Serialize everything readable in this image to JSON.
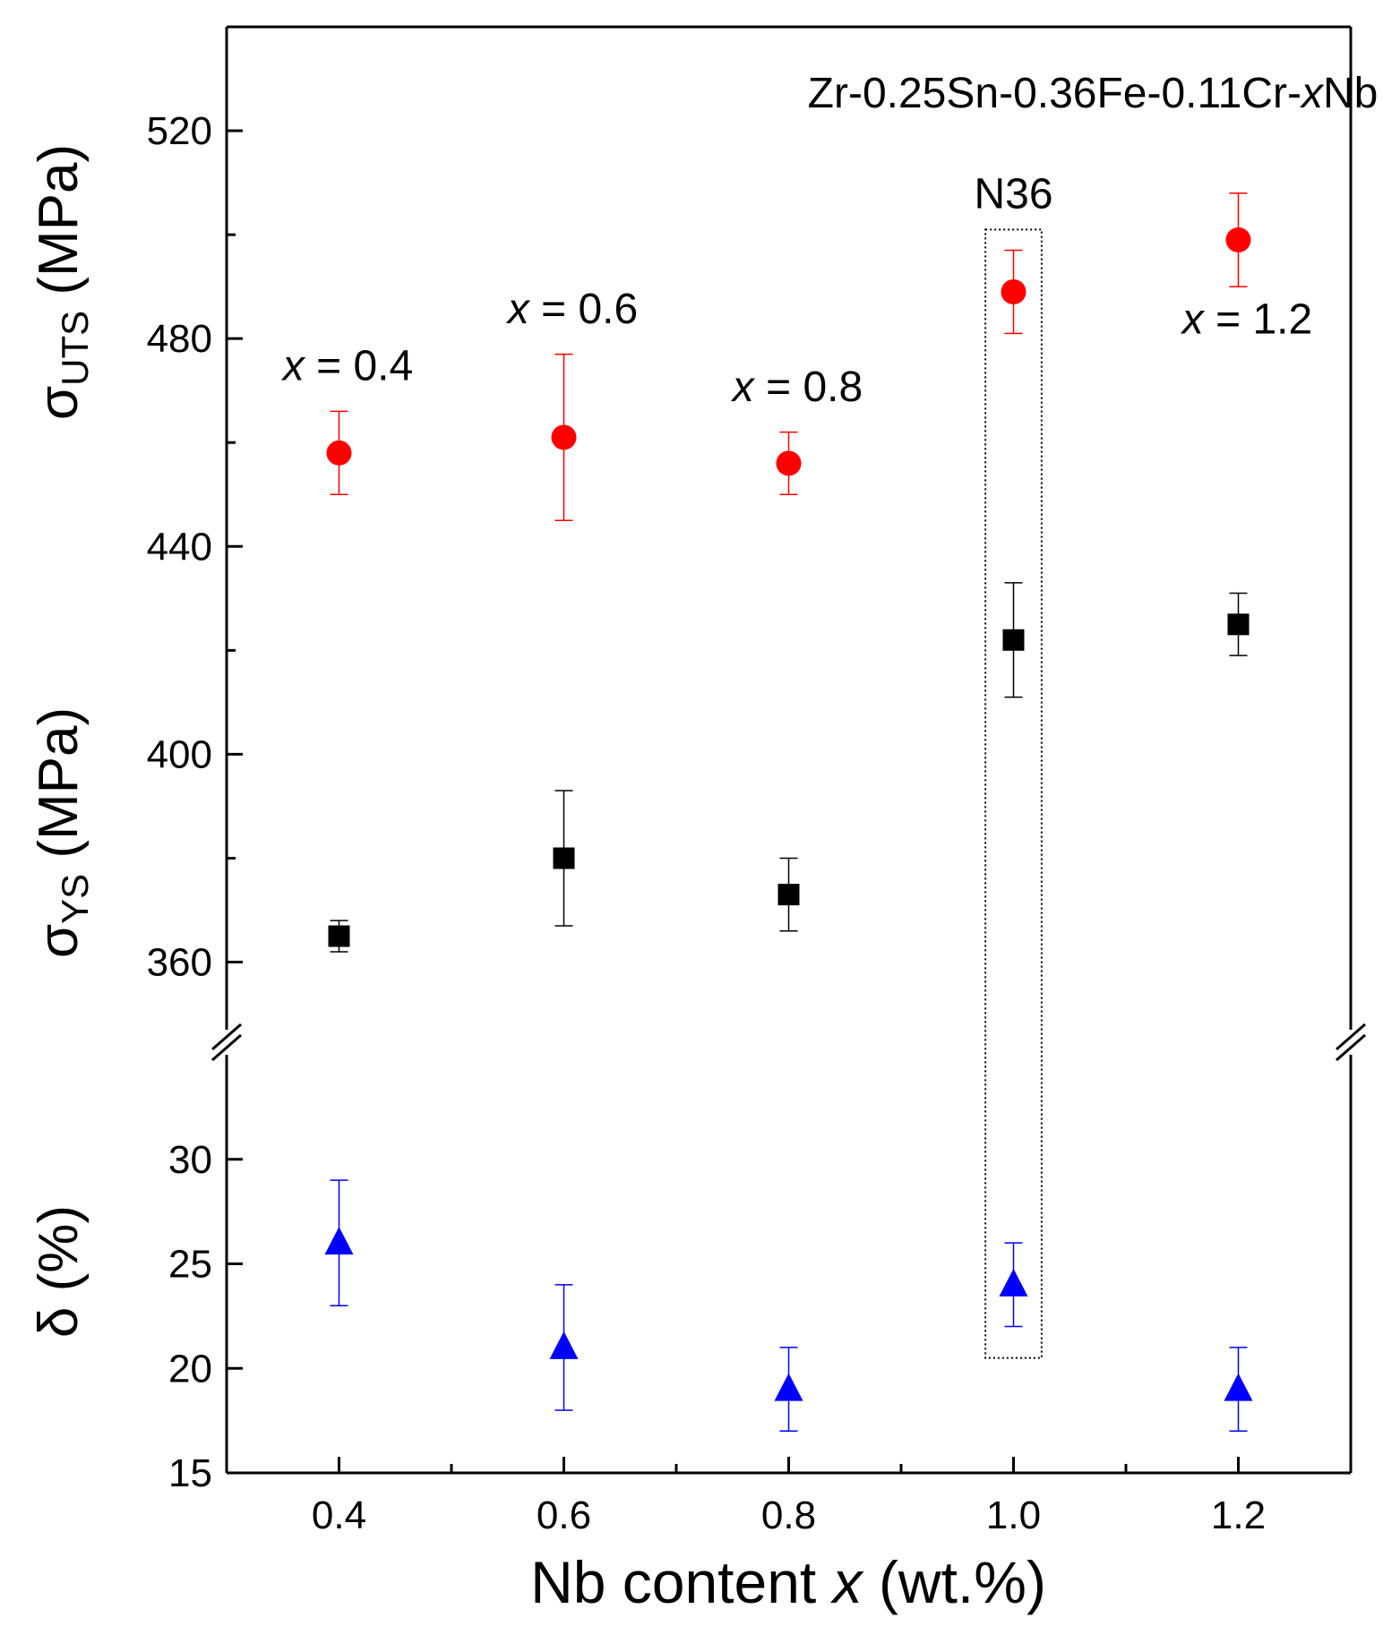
{
  "chart_data": {
    "type": "scatter",
    "title": "Zr-0.25Sn-0.36Fe-0.11Cr-xNb",
    "title_parts": {
      "prefix": "Zr-0.25Sn-0.36Fe-0.11Cr-",
      "var": "x",
      "suffix": "Nb"
    },
    "xlabel": "Nb content x (wt.%)",
    "xlabel_parts": {
      "prefix": "Nb content ",
      "var": "x",
      "suffix": " (wt.%)"
    },
    "xlim": [
      0.3,
      1.3
    ],
    "xticks": [
      "0.4",
      "0.6",
      "0.8",
      "1.0",
      "1.2"
    ],
    "upper_axis": {
      "ylim": [
        347,
        540
      ],
      "yticks": [
        "360",
        "400",
        "440",
        "480",
        "520"
      ],
      "ylabel_uts": {
        "symbol": "σ",
        "sub": "UTS",
        "unit": " (MPa)"
      },
      "ylabel_ys": {
        "symbol": "σ",
        "sub": "YS",
        "unit": " (MPa)"
      }
    },
    "lower_axis": {
      "ylim": [
        15,
        35
      ],
      "yticks": [
        "15",
        "20",
        "25",
        "30"
      ],
      "ylabel": "δ (%)"
    },
    "series": [
      {
        "name": "σUTS",
        "axis": "upper",
        "marker": "circle",
        "color": "#ff0000",
        "x": [
          0.4,
          0.6,
          0.8,
          1.0,
          1.2
        ],
        "values": [
          458,
          461,
          456,
          489,
          499
        ],
        "err_low": [
          450,
          445,
          450,
          481,
          490
        ],
        "err_high": [
          466,
          477,
          462,
          497,
          508
        ]
      },
      {
        "name": "σYS",
        "axis": "upper",
        "marker": "square",
        "color": "#000000",
        "x": [
          0.4,
          0.6,
          0.8,
          1.0,
          1.2
        ],
        "values": [
          365,
          380,
          373,
          422,
          425
        ],
        "err_low": [
          362,
          367,
          366,
          411,
          419
        ],
        "err_high": [
          368,
          393,
          380,
          433,
          431
        ]
      },
      {
        "name": "δ",
        "axis": "lower",
        "marker": "triangle",
        "color": "#0000ff",
        "x": [
          0.4,
          0.6,
          0.8,
          1.0,
          1.2
        ],
        "values": [
          26,
          21,
          19,
          24,
          19
        ],
        "err_low": [
          23,
          18,
          17,
          22,
          17
        ],
        "err_high": [
          29,
          24,
          21,
          26,
          21
        ]
      }
    ],
    "annotations": [
      {
        "var": "x",
        "text": " = 0.4",
        "x": 0.4,
        "y": 472
      },
      {
        "var": "x",
        "text": " = 0.6",
        "x": 0.6,
        "y": 483
      },
      {
        "var": "x",
        "text": " = 0.8",
        "x": 0.8,
        "y": 468
      },
      {
        "var": "x",
        "text": " = 1.2",
        "x": 1.2,
        "y": 481
      }
    ],
    "highlight": {
      "label": "N36",
      "x_range": [
        0.975,
        1.025
      ],
      "y_top_upper": 501,
      "y_bottom_lower": 20.5
    }
  }
}
